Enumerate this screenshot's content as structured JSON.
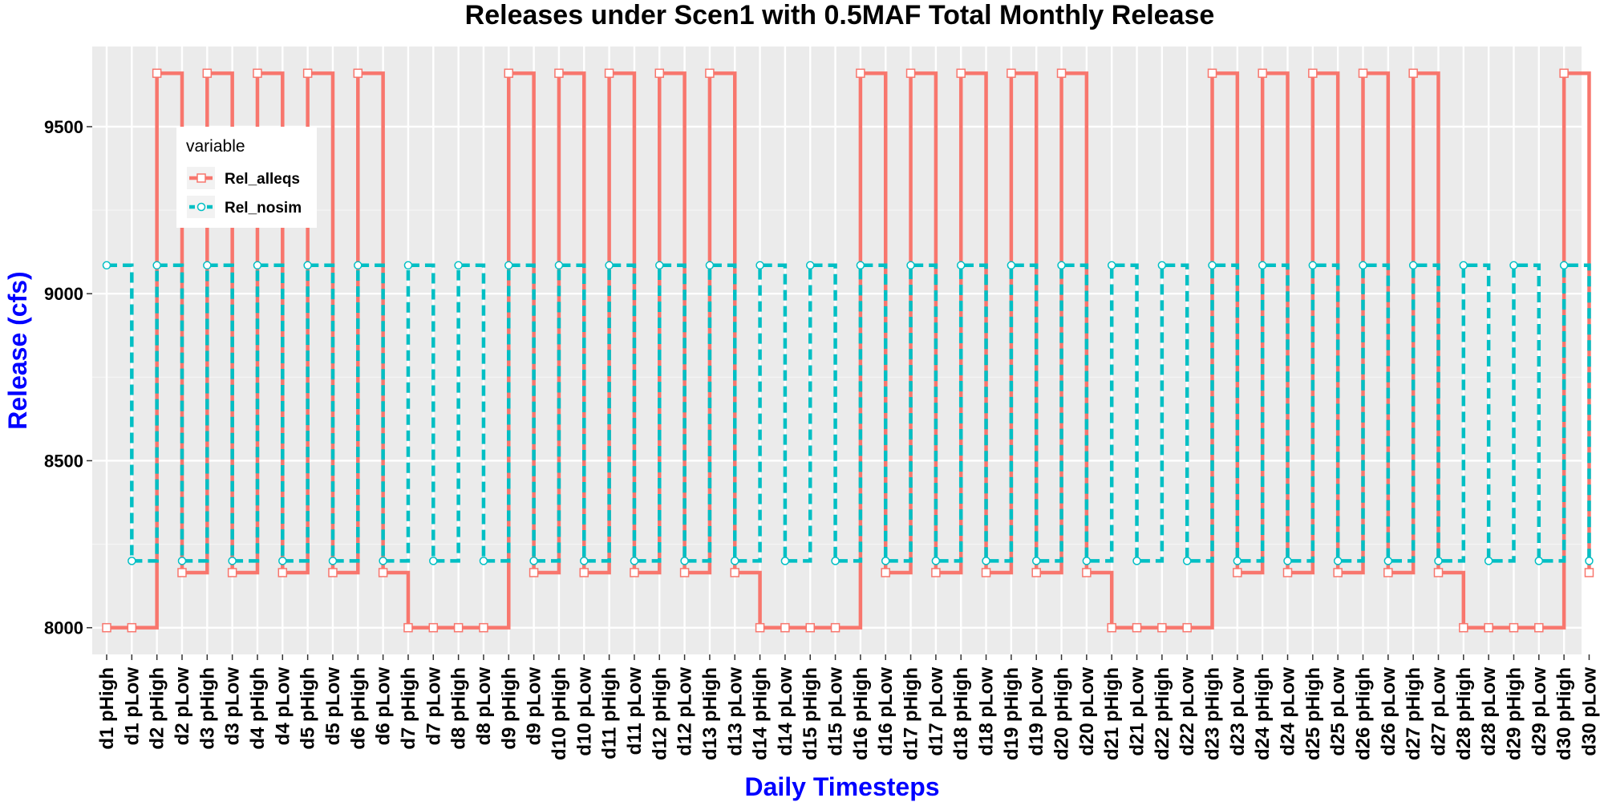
{
  "chart_data": {
    "type": "line",
    "step": true,
    "title": "Releases under Scen1 with 0.5MAF Total Monthly Release",
    "xlabel": "Daily Timesteps",
    "ylabel": "Release (cfs)",
    "categories": [
      "d1 pHigh",
      "d1 pLow",
      "d2 pHigh",
      "d2 pLow",
      "d3 pHigh",
      "d3 pLow",
      "d4 pHigh",
      "d4 pLow",
      "d5 pHigh",
      "d5 pLow",
      "d6 pHigh",
      "d6 pLow",
      "d7 pHigh",
      "d7 pLow",
      "d8 pHigh",
      "d8 pLow",
      "d9 pHigh",
      "d9 pLow",
      "d10 pHigh",
      "d10 pLow",
      "d11 pHigh",
      "d11 pLow",
      "d12 pHigh",
      "d12 pLow",
      "d13 pHigh",
      "d13 pLow",
      "d14 pHigh",
      "d14 pLow",
      "d15 pHigh",
      "d15 pLow",
      "d16 pHigh",
      "d16 pLow",
      "d17 pHigh",
      "d17 pLow",
      "d18 pHigh",
      "d18 pLow",
      "d19 pHigh",
      "d19 pLow",
      "d20 pHigh",
      "d20 pLow",
      "d21 pHigh",
      "d21 pLow",
      "d22 pHigh",
      "d22 pLow",
      "d23 pHigh",
      "d23 pLow",
      "d24 pHigh",
      "d24 pLow",
      "d25 pHigh",
      "d25 pLow",
      "d26 pHigh",
      "d26 pLow",
      "d27 pHigh",
      "d27 pLow",
      "d28 pHigh",
      "d28 pLow",
      "d29 pHigh",
      "d29 pLow",
      "d30 pHigh",
      "d30 pLow"
    ],
    "yticks": [
      8000,
      8500,
      9000,
      9500
    ],
    "ylim": [
      7920,
      9740
    ],
    "grid": true,
    "legend": {
      "title": "variable",
      "position": "top-left"
    },
    "series": [
      {
        "name": "Rel_alleqs",
        "color": "#f8766d",
        "marker": "square",
        "linestyle": "solid",
        "values": [
          8000,
          8000,
          9660,
          8165,
          9660,
          8165,
          9660,
          8165,
          9660,
          8165,
          9660,
          8165,
          8000,
          8000,
          8000,
          8000,
          9660,
          8165,
          9660,
          8165,
          9660,
          8165,
          9660,
          8165,
          9660,
          8165,
          8000,
          8000,
          8000,
          8000,
          9660,
          8165,
          9660,
          8165,
          9660,
          8165,
          9660,
          8165,
          9660,
          8165,
          8000,
          8000,
          8000,
          8000,
          9660,
          8165,
          9660,
          8165,
          9660,
          8165,
          9660,
          8165,
          9660,
          8165,
          8000,
          8000,
          8000,
          8000,
          9660,
          8165
        ]
      },
      {
        "name": "Rel_nosim",
        "color": "#00bfc4",
        "marker": "circle",
        "linestyle": "dashed",
        "values": [
          9085,
          8200,
          9085,
          8200,
          9085,
          8200,
          9085,
          8200,
          9085,
          8200,
          9085,
          8200,
          9085,
          8200,
          9085,
          8200,
          9085,
          8200,
          9085,
          8200,
          9085,
          8200,
          9085,
          8200,
          9085,
          8200,
          9085,
          8200,
          9085,
          8200,
          9085,
          8200,
          9085,
          8200,
          9085,
          8200,
          9085,
          8200,
          9085,
          8200,
          9085,
          8200,
          9085,
          8200,
          9085,
          8200,
          9085,
          8200,
          9085,
          8200,
          9085,
          8200,
          9085,
          8200,
          9085,
          8200,
          9085,
          8200,
          9085,
          8200
        ]
      }
    ]
  }
}
